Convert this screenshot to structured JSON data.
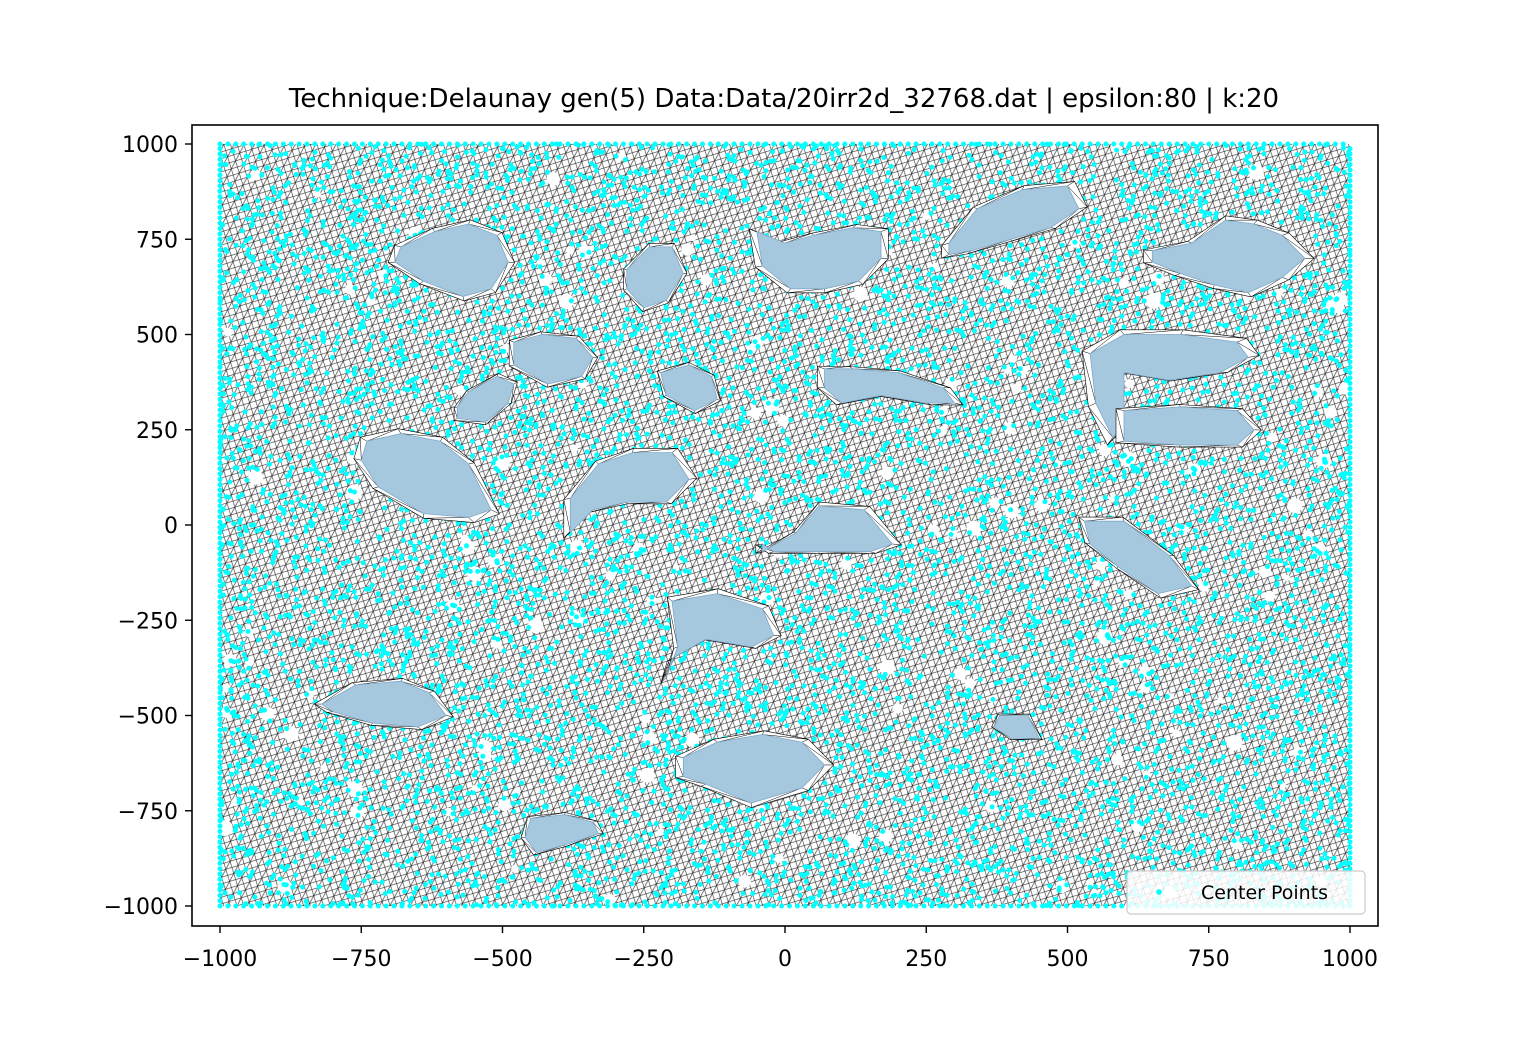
{
  "chart_data": {
    "type": "scatter",
    "title": "Technique:Delaunay  gen(5) Data:Data/20irr2d_32768.dat | epsilon:80 | k:20",
    "xlabel": "",
    "ylabel": "",
    "xlim": [
      -1000,
      1000
    ],
    "ylim": [
      -1000,
      1000
    ],
    "x_ticks": [
      -1000,
      -750,
      -500,
      -250,
      0,
      250,
      500,
      750,
      1000
    ],
    "x_tick_labels": [
      "−1000",
      "−750",
      "−500",
      "−250",
      "0",
      "250",
      "500",
      "750",
      "1000"
    ],
    "y_ticks": [
      1000,
      750,
      500,
      250,
      0,
      -250,
      -500,
      -750,
      -1000
    ],
    "y_tick_labels": [
      "1000",
      "750",
      "500",
      "250",
      "0",
      "−250",
      "−500",
      "−750",
      "−1000"
    ],
    "grid": false,
    "legend": {
      "placement": "lower-right",
      "entries": [
        "Center Points"
      ]
    },
    "series": [
      {
        "name": "Center Points",
        "marker": "point",
        "color": "#00ffff",
        "approx_count": 32768
      }
    ],
    "obstacles": [
      {
        "shape": "blob",
        "x": [
          -680,
          -620,
          -560,
          -510,
          -490,
          -520,
          -570,
          -640,
          -690
        ],
        "y": [
          730,
          770,
          790,
          760,
          690,
          620,
          600,
          640,
          690
        ]
      },
      {
        "shape": "blob",
        "x": [
          -280,
          -240,
          -200,
          -180,
          -210,
          -250,
          -280
        ],
        "y": [
          670,
          730,
          730,
          660,
          590,
          570,
          620
        ]
      },
      {
        "shape": "blob",
        "x": [
          -50,
          0,
          50,
          120,
          170,
          170,
          130,
          70,
          10,
          -40
        ],
        "y": [
          770,
          740,
          760,
          780,
          770,
          700,
          640,
          620,
          620,
          680
        ]
      },
      {
        "shape": "blob",
        "x": [
          290,
          340,
          420,
          500,
          520,
          470,
          400,
          330,
          290
        ],
        "y": [
          740,
          830,
          880,
          890,
          830,
          780,
          750,
          720,
          710
        ]
      },
      {
        "shape": "blob",
        "x": [
          650,
          720,
          780,
          830,
          880,
          920,
          880,
          820,
          760,
          700,
          650
        ],
        "y": [
          720,
          740,
          800,
          790,
          760,
          700,
          650,
          610,
          630,
          660,
          690
        ]
      },
      {
        "shape": "blob",
        "x": [
          -480,
          -430,
          -370,
          -340,
          -360,
          -420,
          -480
        ],
        "y": [
          480,
          500,
          490,
          440,
          390,
          370,
          420
        ]
      },
      {
        "shape": "blob",
        "x": [
          -560,
          -510,
          -480,
          -490,
          -530,
          -580,
          -580
        ],
        "y": [
          350,
          390,
          370,
          320,
          270,
          280,
          310
        ]
      },
      {
        "shape": "blob",
        "x": [
          -220,
          -170,
          -130,
          -120,
          -160,
          -210
        ],
        "y": [
          400,
          420,
          390,
          330,
          300,
          340
        ]
      },
      {
        "shape": "blob",
        "x": [
          70,
          120,
          200,
          280,
          300,
          250,
          170,
          100,
          70
        ],
        "y": [
          410,
          410,
          400,
          360,
          320,
          320,
          340,
          320,
          360
        ]
      },
      {
        "shape": "blob",
        "x": [
          540,
          600,
          700,
          800,
          820,
          770,
          680,
          600,
          600,
          580,
          550
        ],
        "y": [
          450,
          500,
          500,
          480,
          440,
          400,
          380,
          400,
          260,
          230,
          320
        ]
      },
      {
        "shape": "blob",
        "x": [
          600,
          700,
          800,
          830,
          800,
          700,
          600
        ],
        "y": [
          300,
          310,
          300,
          250,
          210,
          210,
          220
        ]
      },
      {
        "shape": "blob",
        "x": [
          -740,
          -680,
          -610,
          -560,
          -520,
          -560,
          -640,
          -720,
          -750
        ],
        "y": [
          220,
          240,
          220,
          160,
          40,
          20,
          30,
          100,
          170
        ]
      },
      {
        "shape": "blob",
        "x": [
          -330,
          -270,
          -200,
          -170,
          -210,
          -280,
          -340,
          -380,
          -380
        ],
        "y": [
          160,
          190,
          190,
          120,
          60,
          60,
          40,
          -20,
          70
        ]
      },
      {
        "shape": "blob",
        "x": [
          -40,
          20,
          60,
          140,
          190,
          150,
          60,
          -20,
          -40
        ],
        "y": [
          -70,
          -20,
          50,
          40,
          -50,
          -70,
          -70,
          -70,
          -50
        ]
      },
      {
        "shape": "blob",
        "x": [
          530,
          600,
          680,
          720,
          660,
          590,
          540
        ],
        "y": [
          10,
          10,
          -80,
          -160,
          -180,
          -110,
          -50
        ]
      },
      {
        "shape": "blob",
        "x": [
          -200,
          -120,
          -40,
          -20,
          -60,
          -140,
          -200,
          -210,
          -190
        ],
        "y": [
          -200,
          -180,
          -220,
          -290,
          -320,
          -300,
          -350,
          -400,
          -320
        ]
      },
      {
        "shape": "blob",
        "x": [
          -820,
          -760,
          -680,
          -630,
          -600,
          -650,
          -730,
          -800
        ],
        "y": [
          -470,
          -420,
          -410,
          -440,
          -500,
          -530,
          -520,
          -490
        ]
      },
      {
        "shape": "blob",
        "x": [
          380,
          430,
          450,
          400,
          370
        ],
        "y": [
          -500,
          -500,
          -560,
          -560,
          -530
        ]
      },
      {
        "shape": "blob",
        "x": [
          -180,
          -120,
          -40,
          30,
          70,
          30,
          -60,
          -140,
          -180
        ],
        "y": [
          -610,
          -570,
          -550,
          -570,
          -630,
          -690,
          -730,
          -680,
          -660
        ]
      },
      {
        "shape": "blob",
        "x": [
          -450,
          -390,
          -340,
          -330,
          -390,
          -440,
          -460
        ],
        "y": [
          -770,
          -760,
          -780,
          -810,
          -840,
          -860,
          -820
        ]
      }
    ]
  }
}
